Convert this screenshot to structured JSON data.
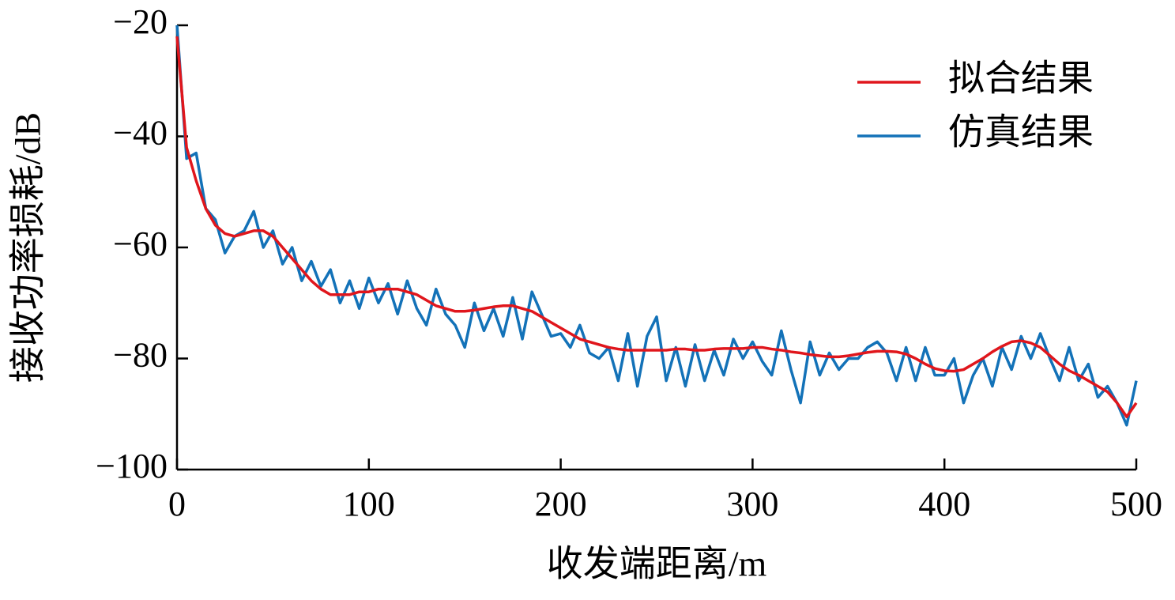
{
  "chart_data": {
    "type": "line",
    "xlabel": "收发端距离/m",
    "ylabel": "接收功率损耗/dB",
    "xlim": [
      0,
      500
    ],
    "ylim": [
      -100,
      -20
    ],
    "xticks": [
      0,
      100,
      200,
      300,
      400,
      500
    ],
    "yticks": [
      {
        "value": -100,
        "label": "−100"
      },
      {
        "value": -80,
        "label": "−80"
      },
      {
        "value": -60,
        "label": "−60"
      },
      {
        "value": -40,
        "label": "−40"
      },
      {
        "value": -20,
        "label": "−20"
      }
    ],
    "legend": "upper right",
    "x": [
      0,
      5,
      10,
      15,
      20,
      25,
      30,
      35,
      40,
      45,
      50,
      55,
      60,
      65,
      70,
      75,
      80,
      85,
      90,
      95,
      100,
      105,
      110,
      115,
      120,
      125,
      130,
      135,
      140,
      145,
      150,
      155,
      160,
      165,
      170,
      175,
      180,
      185,
      190,
      195,
      200,
      205,
      210,
      215,
      220,
      225,
      230,
      235,
      240,
      245,
      250,
      255,
      260,
      265,
      270,
      275,
      280,
      285,
      290,
      295,
      300,
      305,
      310,
      315,
      320,
      325,
      330,
      335,
      340,
      345,
      350,
      355,
      360,
      365,
      370,
      375,
      380,
      385,
      390,
      395,
      400,
      405,
      410,
      415,
      420,
      425,
      430,
      435,
      440,
      445,
      450,
      455,
      460,
      465,
      470,
      475,
      480,
      485,
      490,
      495,
      500
    ],
    "series": [
      {
        "name": "拟合结果",
        "color": "#e0161c",
        "values": [
          -22,
          -42,
          -48,
          -53,
          -56,
          -57.5,
          -58,
          -57.5,
          -57,
          -57,
          -58,
          -60,
          -62,
          -64,
          -66,
          -67.5,
          -68.5,
          -68.5,
          -68.5,
          -68,
          -68,
          -67.5,
          -67.5,
          -67.5,
          -68,
          -68.5,
          -69.5,
          -70.5,
          -71,
          -71.5,
          -71.5,
          -71.3,
          -71,
          -70.7,
          -70.5,
          -70.5,
          -71,
          -71.5,
          -72.5,
          -73.5,
          -74.5,
          -75.5,
          -76.5,
          -77,
          -77.5,
          -78,
          -78.3,
          -78.5,
          -78.5,
          -78.5,
          -78.5,
          -78.5,
          -78.3,
          -78.3,
          -78.5,
          -78.5,
          -78.3,
          -78.2,
          -78.2,
          -78.2,
          -78,
          -78,
          -78.3,
          -78.5,
          -78.8,
          -79,
          -79.3,
          -79.5,
          -79.7,
          -79.7,
          -79.5,
          -79.2,
          -78.9,
          -78.7,
          -78.7,
          -78.8,
          -79.2,
          -80,
          -81,
          -81.8,
          -82.2,
          -82.3,
          -82,
          -81,
          -80,
          -78.8,
          -77.8,
          -77,
          -76.8,
          -77.2,
          -78,
          -79.5,
          -81,
          -82.2,
          -83,
          -84,
          -85,
          -86,
          -88,
          -90.5,
          -88
        ]
      },
      {
        "name": "仿真结果",
        "color": "#1372b8",
        "values": [
          -20,
          -44,
          -43,
          -53,
          -55,
          -61,
          -58,
          -57,
          -53.5,
          -60,
          -57,
          -63,
          -60,
          -66,
          -62.5,
          -67,
          -64,
          -70,
          -66,
          -71,
          -65.5,
          -70,
          -66.5,
          -72,
          -66,
          -71,
          -74,
          -67.5,
          -72,
          -74,
          -78,
          -70,
          -75,
          -71,
          -76,
          -69,
          -76.5,
          -68,
          -72,
          -76,
          -75.5,
          -78,
          -74,
          -79,
          -80,
          -78,
          -84,
          -75.5,
          -85,
          -76,
          -72.5,
          -84,
          -78,
          -85,
          -77.5,
          -84,
          -78.5,
          -83,
          -76.5,
          -80,
          -77,
          -80.5,
          -83,
          -75,
          -82,
          -88,
          -77,
          -83,
          -79,
          -82,
          -80,
          -80,
          -78,
          -77,
          -79,
          -84,
          -78,
          -84,
          -78,
          -83,
          -83,
          -80,
          -88,
          -83,
          -80,
          -85,
          -78,
          -82,
          -76,
          -80,
          -75.5,
          -80,
          -84,
          -78,
          -84,
          -81,
          -87,
          -85,
          -88,
          -92,
          -84
        ]
      }
    ]
  }
}
